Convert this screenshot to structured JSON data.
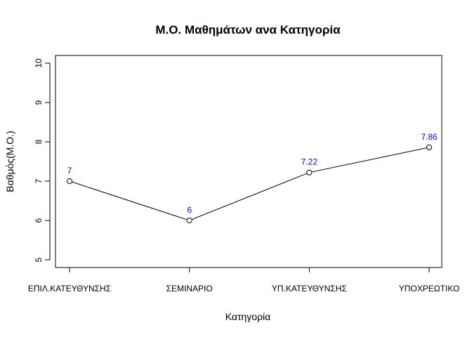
{
  "chart_data": {
    "type": "line",
    "title": "Μ.Ο. Μαθημάτων ανα Κατηγορία",
    "xlabel": "Κατηγορία",
    "ylabel": "Βαθμός(Μ.Ο.)",
    "categories": [
      "ΕΠΙΛ.ΚΑΤΕΥΘΥΝΣΗΣ",
      "ΣΕΜΙΝΑΡΙΟ",
      "ΥΠ.ΚΑΤΕΥΘΥΝΣΗΣ",
      "ΥΠΟΧΡΕΩΤΙΚΟ"
    ],
    "values": [
      7,
      6,
      7.22,
      7.86
    ],
    "data_labels": [
      "7",
      "6",
      "7.22",
      "7.86"
    ],
    "ylim": [
      5,
      10
    ],
    "yticks": [
      5,
      6,
      7,
      8,
      9,
      10
    ],
    "grid": false,
    "legend": "none",
    "colors": {
      "line": "#000000",
      "marker_edge": "#000000",
      "marker_fill": "#ffffff",
      "data_label": "#0000ff",
      "axis": "#000000"
    }
  }
}
